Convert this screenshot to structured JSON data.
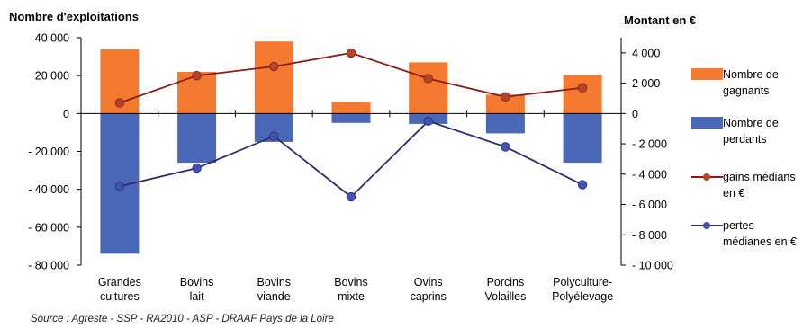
{
  "chart_data": {
    "type": "bar",
    "left_axis_title": "Nombre d'exploitations",
    "right_axis_title": "Montant en €",
    "categories": [
      [
        "Grandes",
        "cultures"
      ],
      [
        "Bovins",
        "lait"
      ],
      [
        "Bovins",
        "viande"
      ],
      [
        "Bovins",
        "mixte"
      ],
      [
        "Ovins",
        "caprins"
      ],
      [
        "Porcins",
        "Volailles"
      ],
      [
        "Polyculture-",
        "Polyélevage"
      ]
    ],
    "left_axis": {
      "ylim": [
        -80000,
        40000
      ],
      "ticks": [
        40000,
        20000,
        0,
        -20000,
        -40000,
        -60000,
        -80000
      ],
      "tick_labels": [
        "40 000",
        "20 000",
        "0",
        "- 20 000",
        "- 40 000",
        "- 60 000",
        "- 80 000"
      ]
    },
    "right_axis": {
      "ylim": [
        -10000,
        5000
      ],
      "ticks": [
        4000,
        2000,
        0,
        -2000,
        -4000,
        -6000,
        -8000,
        -10000
      ],
      "tick_labels": [
        "4 000",
        "2 000",
        "0",
        "- 2 000",
        "- 4 000",
        "- 6 000",
        "- 8 000",
        "- 10 000"
      ]
    },
    "series": [
      {
        "name": "Nombre de gagnants",
        "type": "bar",
        "axis": "left",
        "color": "#F47A30",
        "values": [
          34000,
          22000,
          38000,
          6000,
          27000,
          10000,
          20500
        ]
      },
      {
        "name": "Nombre de perdants",
        "type": "bar",
        "axis": "left",
        "color": "#4A68B8",
        "values": [
          -74000,
          -26000,
          -15000,
          -5000,
          -5500,
          -10500,
          -26000
        ]
      },
      {
        "name": "gains médians en €",
        "type": "line",
        "axis": "right",
        "color": "#8B1A1A",
        "marker_color": "#B5452A",
        "values": [
          700,
          2500,
          3100,
          4000,
          2300,
          1100,
          1700
        ]
      },
      {
        "name": "pertes médianes en €",
        "type": "line",
        "axis": "right",
        "color": "#2E2A70",
        "marker_color": "#3F52B5",
        "values": [
          -4800,
          -3600,
          -1500,
          -5500,
          -500,
          -2200,
          -4700
        ]
      }
    ],
    "legend": [
      {
        "label": [
          "Nombre de",
          "gagnants"
        ],
        "kind": "box",
        "color": "#F47A30"
      },
      {
        "label": [
          "Nombre de",
          "perdants"
        ],
        "kind": "box",
        "color": "#4A68B8"
      },
      {
        "label": [
          "gains médians",
          "en €"
        ],
        "kind": "line",
        "color": "#8B1A1A",
        "marker_color": "#B5452A"
      },
      {
        "label": [
          "pertes",
          "médianes en €"
        ],
        "kind": "line",
        "color": "#2E2A70",
        "marker_color": "#3F52B5"
      }
    ],
    "legend_position": "right",
    "grid": false,
    "source": "Source : Agreste - SSP - RA2010 - ASP - DRAAF Pays de la Loire"
  }
}
